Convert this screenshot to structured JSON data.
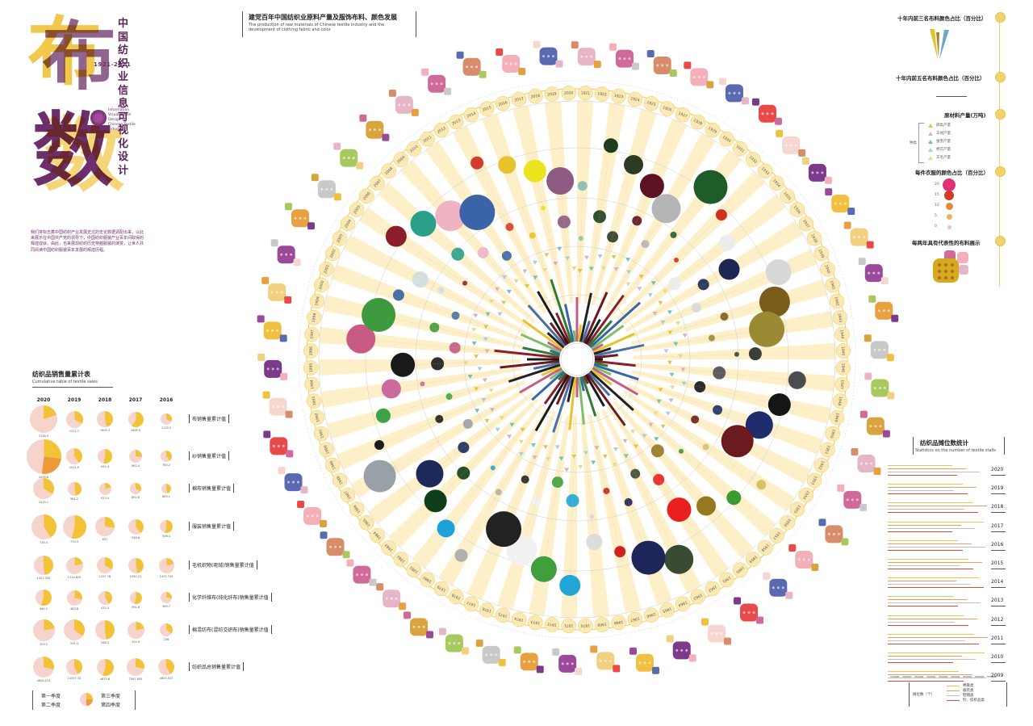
{
  "brand": {
    "glyph_top": "布",
    "glyph_bottom": "数",
    "years": "1921-2021",
    "subtitle_en": "Information Visualization Design of Chinese Textile Industry",
    "title_cn": "中国纺织业信息可视化设计",
    "intro": "我们将标志着中国纺织产业发展史过的史论数据调配出来，以此来展示在中国共产党的领导下，中国纺织服装产业百年间取得的辉煌成就。由此，也来展现纺织历史穿越服装的演变，让世人共同阅读中国纺织服装百年发展的辉煌历程。"
  },
  "colors": {
    "accent_purple": "#6c2f6b",
    "accent_yellow": "#f1c84b",
    "band_light": "#fdf0c8",
    "pie_light": "#f6d4cc",
    "pie_yellow": "#f2c237",
    "pie_orange": "#ee9a3a"
  },
  "chart": {
    "title_cn": "建党百年中国纺织业原料产量及服饰布料、颜色发展",
    "title_en": "The production of raw materials of Chinese textile industry and the development of clothing fabric and color",
    "years_outer": [
      "1921",
      "1922",
      "1923",
      "1924",
      "1925",
      "1926",
      "1927",
      "1928",
      "1929",
      "1930",
      "1931",
      "1932",
      "1933",
      "1934",
      "1935",
      "1936",
      "1937",
      "1938",
      "1939",
      "1940",
      "1941",
      "1942",
      "1943",
      "1944",
      "1945",
      "1946",
      "1947",
      "1948",
      "1949",
      "1950",
      "1951",
      "1952",
      "1953",
      "1954",
      "1955",
      "1956",
      "1957",
      "1958",
      "1959",
      "1960",
      "1961",
      "1962",
      "1963",
      "1964",
      "1965",
      "1966",
      "1967",
      "1968",
      "1969",
      "1970",
      "1971",
      "1972",
      "1973",
      "1974",
      "1975",
      "1976",
      "1977",
      "1978",
      "1979",
      "1980",
      "1981",
      "1982",
      "1983",
      "1984",
      "1985",
      "1986",
      "1987",
      "1988",
      "1989",
      "1990",
      "1991",
      "1992",
      "1993",
      "1994",
      "1995",
      "1996",
      "1997",
      "1998",
      "1999",
      "2000",
      "2001",
      "2002",
      "2003",
      "2004",
      "2005",
      "2006",
      "2007",
      "2008",
      "2009",
      "2010",
      "2011",
      "2012",
      "2013",
      "2014",
      "2015",
      "2016",
      "2017",
      "2018",
      "2019",
      "2020"
    ],
    "color_circles": [
      "#8fc0b5",
      "#1f3e1d",
      "#2e3b24",
      "#5c1322",
      "#b5b5b5",
      "#1e5c2a",
      "#d0311f",
      "#ececec",
      "#1c2853",
      "#d8d8d8",
      "#7c5c1a",
      "#9a8a33",
      "#3a3f39",
      "#4a4c50",
      "#151515",
      "#1e2d6b",
      "#6b1a1e",
      "#d8c16a",
      "#3c9a35",
      "#957920",
      "#ea1f1f",
      "#3a4a33",
      "#1e2559",
      "#d22121",
      "#dcdcdc",
      "#22a6d6",
      "#3e9f3c",
      "#f1f1f1",
      "#222222",
      "#b0b0b0",
      "#1da2d9",
      "#0f3f1a",
      "#1c2a5a",
      "#9aa0a8",
      "#1c1c1c",
      "#3ba34a",
      "#cd6a9d",
      "#1a1a1a",
      "#c75b84",
      "#3e9a3e",
      "#4670a6",
      "#d4dfe0",
      "#8a1f2a",
      "#2aa08a",
      "#f0b3c4",
      "#3a63a8",
      "#d23c2d",
      "#e7c22b",
      "#eae31e",
      "#8d5a82"
    ],
    "pattern_colors": [
      "#e6b6c8",
      "#f2c040",
      "#cf6a9a",
      "#f1d080",
      "#d78c6a",
      "#9b4a9a",
      "#f4b0b8",
      "#e8a040",
      "#5a6ab0",
      "#c9c9c9",
      "#e84a4a",
      "#a8c860",
      "#f6d7d0",
      "#d9a440",
      "#7b3a8a"
    ]
  },
  "sales_table": {
    "title_cn": "纺织品销售量累计表",
    "title_en": "Cumulative table of textile sales",
    "years": [
      "2020",
      "2019",
      "2018",
      "2017",
      "2016"
    ],
    "rows": [
      {
        "label": "布销售量累计值",
        "values": [
          "1318.9",
          "1272.7",
          "1605.3",
          "1699.5",
          "1133.5"
        ],
        "scale": [
          1.0,
          0.62,
          0.58,
          0.55,
          0.4
        ]
      },
      {
        "label": "纱销售量累计值",
        "values": [
          "1039.6",
          "1012.9",
          "991.4",
          "962.4",
          "765.2"
        ],
        "scale": [
          1.25,
          0.6,
          0.52,
          0.48,
          0.42
        ]
      },
      {
        "label": "棉布销售量累计值",
        "values": [
          "1015.1",
          "981.2",
          "923.4",
          "892.8",
          "863.1"
        ],
        "scale": [
          0.75,
          0.5,
          0.45,
          0.42,
          0.35
        ]
      },
      {
        "label": "服装销售量累计值",
        "values": [
          "735.3",
          "733.3",
          "657",
          "548.6",
          "506.4"
        ],
        "scale": [
          0.9,
          0.85,
          0.7,
          0.55,
          0.48
        ]
      },
      {
        "label": "毛机织物(呢绒)销售量累计值",
        "values": [
          "1427.335",
          "1314.825",
          "1257.78",
          "1450.31",
          "1473.743"
        ],
        "scale": [
          0.72,
          0.62,
          0.6,
          0.55,
          0.55
        ]
      },
      {
        "label": "化学纤维布(纯化纤布)销售量累计值",
        "values": [
          "484.5",
          "482.8",
          "432.2",
          "392.8",
          "369.7"
        ],
        "scale": [
          0.6,
          0.55,
          0.5,
          0.45,
          0.42
        ]
      },
      {
        "label": "棉混纺布(混纺交织布)销售量累计值",
        "values": [
          "303.2",
          "291.4",
          "268.3",
          "254.9",
          "236"
        ],
        "scale": [
          0.8,
          0.75,
          0.7,
          0.62,
          0.48
        ]
      },
      {
        "label": "纺织品总销售量累计值",
        "values": [
          "4650.125",
          "14557.34",
          "4673.6",
          "7567.655",
          "4853.547"
        ],
        "scale": [
          0.75,
          0.6,
          0.62,
          0.65,
          0.6
        ]
      }
    ],
    "legend": {
      "q1": "第一季度",
      "q2": "第二季度",
      "q3": "第三季度",
      "q4": "第四季度"
    }
  },
  "legends": {
    "l1": "十年内前三名布料颜色占比（百分比）",
    "l2": "十年内前五名布料颜色占比（百分比）",
    "l3": "原材料产量(万吨)",
    "l3_group": "种类",
    "l3_items": [
      {
        "label": "麻类产量",
        "color": "#e6c24a"
      },
      {
        "label": "羊绒产量",
        "color": "#d9b0c0"
      },
      {
        "label": "蚕茧产量",
        "color": "#6fc3b2"
      },
      {
        "label": "棉花产量",
        "color": "#a8cde0"
      },
      {
        "label": "羊毛产量",
        "color": "#e9d88a"
      }
    ],
    "l4": "每件衣服的颜色占比（百分比）",
    "l4_items": [
      {
        "n": "20",
        "c": "#e0307a"
      },
      {
        "n": "15",
        "c": "#d23b2a"
      },
      {
        "n": "10",
        "c": "#e08a3a"
      },
      {
        "n": "5",
        "c": "#e9b45a"
      },
      {
        "n": "0",
        "c": "#e7c2cc"
      }
    ],
    "l5": "每两年具有代表性的布料展示"
  },
  "stalls": {
    "title_cn": "纺织品摊位数统计",
    "title_en": "Statistics on the number of textile stalls",
    "years": [
      "2020",
      "2019",
      "2018",
      "2017",
      "2016",
      "2015",
      "2014",
      "2013",
      "2012",
      "2011",
      "2010",
      "2009"
    ],
    "axis": [
      "150000",
      "200000",
      "250000",
      "300000",
      "350000",
      "400000",
      "450000",
      "500000",
      "550000"
    ],
    "legend_group": "摊位数（个）",
    "legend_items": [
      {
        "label": "棉麻类",
        "color": "#e8c850"
      },
      {
        "label": "服装类",
        "color": "#e9a060"
      },
      {
        "label": "鞋帽类",
        "color": "#c0c0c0"
      },
      {
        "label": "针、纺织品类",
        "color": "#d84a3a"
      }
    ]
  }
}
